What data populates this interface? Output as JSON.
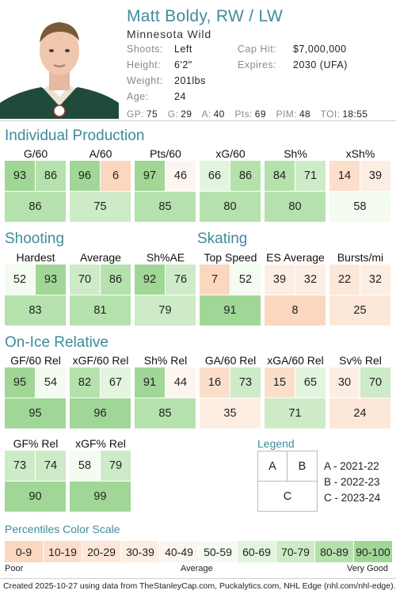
{
  "player": {
    "name": "Matt Boldy, RW / LW",
    "team": "Minnesota Wild",
    "shoots_label": "Shoots:",
    "shoots": "Left",
    "height_label": "Height:",
    "height": "6'2\"",
    "weight_label": "Weight:",
    "weight": "201lbs",
    "age_label": "Age:",
    "age": "24",
    "caphit_label": "Cap Hit:",
    "caphit": "$7,000,000",
    "expires_label": "Expires:",
    "expires": "2030 (UFA)",
    "stats": {
      "gp_label": "GP:",
      "gp": "75",
      "g_label": "G:",
      "g": "29",
      "a_label": "A:",
      "a": "40",
      "pts_label": "Pts:",
      "pts": "69",
      "pim_label": "PIM:",
      "pim": "48",
      "toi_label": "TOI:",
      "toi": "18:55"
    }
  },
  "sections": {
    "individual": "Individual Production",
    "shooting": "Shooting",
    "skating": "Skating",
    "onice": "On-Ice Relative",
    "legend": "Legend",
    "scale": "Percentiles Color Scale"
  },
  "metrics": [
    {
      "id": "g60",
      "label": "G/60",
      "a": 93,
      "b": 86,
      "c": 86
    },
    {
      "id": "a60",
      "label": "A/60",
      "a": 96,
      "b": 6,
      "c": 75
    },
    {
      "id": "pts60",
      "label": "Pts/60",
      "a": 97,
      "b": 46,
      "c": 85
    },
    {
      "id": "xg60",
      "label": "xG/60",
      "a": 66,
      "b": 86,
      "c": 80
    },
    {
      "id": "shpct",
      "label": "Sh%",
      "a": 84,
      "b": 71,
      "c": 80
    },
    {
      "id": "xshpct",
      "label": "xSh%",
      "a": 14,
      "b": 39,
      "c": 58
    },
    {
      "id": "hardest",
      "label": "Hardest",
      "a": 52,
      "b": 93,
      "c": 83
    },
    {
      "id": "average",
      "label": "Average",
      "a": 70,
      "b": 86,
      "c": 81
    },
    {
      "id": "shae",
      "label": "Sh%AE",
      "a": 92,
      "b": 76,
      "c": 79
    },
    {
      "id": "topspeed",
      "label": "Top Speed",
      "a": 7,
      "b": 52,
      "c": 91
    },
    {
      "id": "esavg",
      "label": "ES Average",
      "a": 39,
      "b": 32,
      "c": 8
    },
    {
      "id": "bursts",
      "label": "Bursts/mi",
      "a": 22,
      "b": 32,
      "c": 25
    },
    {
      "id": "gf60rel",
      "label": "GF/60 Rel",
      "a": 95,
      "b": 54,
      "c": 95
    },
    {
      "id": "xgf60rel",
      "label": "xGF/60 Rel",
      "a": 82,
      "b": 67,
      "c": 96
    },
    {
      "id": "shrel",
      "label": "Sh% Rel",
      "a": 91,
      "b": 44,
      "c": 85
    },
    {
      "id": "ga60rel",
      "label": "GA/60 Rel",
      "a": 16,
      "b": 73,
      "c": 35
    },
    {
      "id": "xga60rel",
      "label": "xGA/60 Rel",
      "a": 15,
      "b": 65,
      "c": 71
    },
    {
      "id": "svrel",
      "label": "Sv% Rel",
      "a": 30,
      "b": 70,
      "c": 24
    },
    {
      "id": "gfpctrel",
      "label": "GF% Rel",
      "a": 73,
      "b": 74,
      "c": 90
    },
    {
      "id": "xgfpctrel",
      "label": "xGF% Rel",
      "a": 58,
      "b": 79,
      "c": 99
    }
  ],
  "legend": {
    "a_label": "A",
    "b_label": "B",
    "c_label": "C",
    "a_text": "A - 2021-22",
    "b_text": "B - 2022-23",
    "c_text": "C - 2023-24"
  },
  "scale": {
    "bins": [
      "0-9",
      "10-19",
      "20-29",
      "30-39",
      "40-49",
      "50-59",
      "60-69",
      "70-79",
      "80-89",
      "90-100"
    ],
    "colors": [
      "#fbd7bf",
      "#fcdfca",
      "#fde7d8",
      "#fdeee4",
      "#fdf5ef",
      "#f4fbf1",
      "#e3f4df",
      "#cdebc6",
      "#b5e1ad",
      "#a0d796"
    ],
    "poor": "Poor",
    "average": "Average",
    "very_good": "Very Good"
  },
  "footer": "Created 2025-10-27 using data from TheStanleyCap.com, Puckalytics.com, NHL Edge (nhl.com/nhl-edge)."
}
